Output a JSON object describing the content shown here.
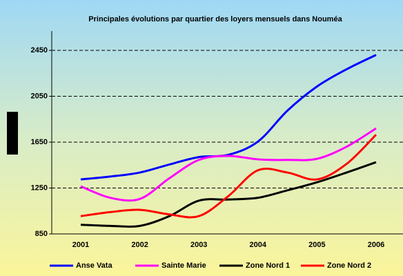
{
  "chart_data": {
    "type": "line",
    "title": "Principales évolutions par quartier des loyers mensuels dans Nouméa",
    "categories": [
      "2001",
      null,
      "2002",
      null,
      "2003",
      null,
      "2004",
      null,
      "2005",
      null,
      "2006"
    ],
    "series": [
      {
        "name": "Anse Vata",
        "color": "#0000ff",
        "values": [
          1325,
          1350,
          1385,
          1455,
          1520,
          1540,
          1655,
          1925,
          2135,
          2285,
          2410
        ]
      },
      {
        "name": "Sainte Marie",
        "color": "#ff00ff",
        "values": [
          1265,
          1165,
          1155,
          1335,
          1495,
          1530,
          1500,
          1495,
          1505,
          1610,
          1770
        ]
      },
      {
        "name": "Zone Nord 1",
        "color": "#000000",
        "values": [
          930,
          920,
          920,
          1005,
          1140,
          1150,
          1165,
          1230,
          1300,
          1385,
          1475
        ]
      },
      {
        "name": "Zone Nord 2",
        "color": "#ff0000",
        "values": [
          1005,
          1040,
          1060,
          1020,
          1005,
          1180,
          1405,
          1385,
          1325,
          1460,
          1715
        ]
      }
    ],
    "ylim": [
      850,
      2450
    ],
    "yticks": [
      850,
      1250,
      1650,
      2050,
      2450
    ],
    "grid": true,
    "legend": "bottom"
  }
}
